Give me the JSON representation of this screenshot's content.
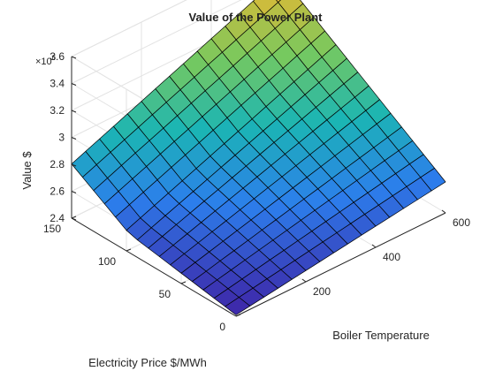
{
  "chart_data": {
    "type": "surface",
    "title": "Value of the Power Plant",
    "xlabel": "Boiler Temperature",
    "ylabel": "Electricity Price $/MWh",
    "zlabel": "Value $",
    "z_exponent_base": "×10",
    "z_exponent_power": "6",
    "xlim": [
      0,
      600
    ],
    "ylim": [
      0,
      150
    ],
    "zlim": [
      2.4,
      3.6
    ],
    "xticks": [
      200,
      400,
      600
    ],
    "yticks": [
      0,
      50,
      100,
      150
    ],
    "zticks": [
      2.4,
      2.6,
      2.8,
      3.0,
      3.2,
      3.4,
      3.6
    ],
    "xtick_labels": [
      "200",
      "400",
      "600"
    ],
    "ytick_labels": [
      "0",
      "50",
      "100",
      "150"
    ],
    "ztick_labels": [
      "2.4",
      "2.6",
      "2.8",
      "3",
      "3.2",
      "3.4",
      "3.6"
    ],
    "grid": true,
    "colormap": [
      "#3e26a8",
      "#2c7eec",
      "#1bb5b4",
      "#76c95f",
      "#e0b935",
      "#f9fb0e"
    ],
    "edge_color": "#000000",
    "corner_values": {
      "x0_y0": 2.41,
      "x600_y0": 2.63,
      "x0_y150": 2.57,
      "x600_y150": 3.63
    },
    "samples": [
      {
        "x": 300,
        "y": 75,
        "z": 2.75
      },
      {
        "x": 0,
        "y": 105,
        "z": 2.56
      },
      {
        "x": 600,
        "y": 105,
        "z": 3.05
      },
      {
        "x": 180,
        "y": 150,
        "z": 3.02
      }
    ]
  }
}
